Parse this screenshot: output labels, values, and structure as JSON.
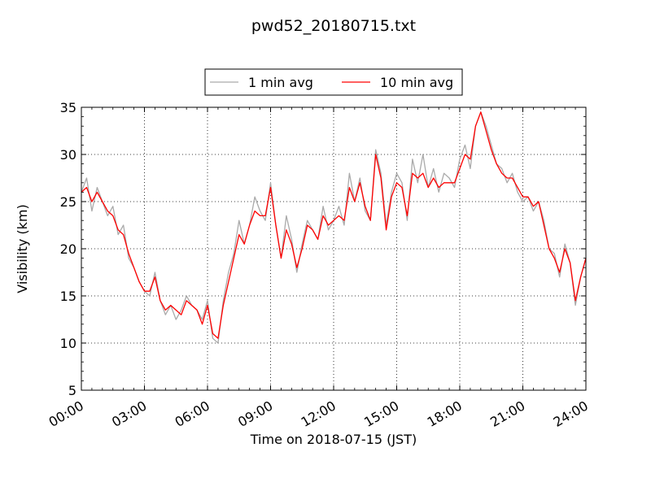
{
  "chart_data": {
    "type": "line",
    "title": "pwd52_20180715.txt",
    "xlabel": "Time on 2018-07-15 (JST)",
    "ylabel": "Visibility (km)",
    "xlim": [
      0,
      24
    ],
    "ylim": [
      5,
      35
    ],
    "x_ticks": [
      0,
      3,
      6,
      9,
      12,
      15,
      18,
      21,
      24
    ],
    "x_tick_labels": [
      "00:00",
      "03:00",
      "06:00",
      "09:00",
      "12:00",
      "15:00",
      "18:00",
      "21:00",
      "24:00"
    ],
    "y_ticks": [
      5,
      10,
      15,
      20,
      25,
      30,
      35
    ],
    "y_tick_labels": [
      "5",
      "10",
      "15",
      "20",
      "25",
      "30",
      "35"
    ],
    "grid": true,
    "legend_position": "top-center",
    "series": [
      {
        "name": "1 min avg",
        "color": "#aaaaaa",
        "x": [
          0.0,
          0.25,
          0.5,
          0.75,
          1.0,
          1.25,
          1.5,
          1.75,
          2.0,
          2.25,
          2.5,
          2.75,
          3.0,
          3.25,
          3.5,
          3.75,
          4.0,
          4.25,
          4.5,
          4.75,
          5.0,
          5.25,
          5.5,
          5.75,
          6.0,
          6.25,
          6.5,
          6.75,
          7.0,
          7.25,
          7.5,
          7.75,
          8.0,
          8.25,
          8.5,
          8.75,
          9.0,
          9.25,
          9.5,
          9.75,
          10.0,
          10.25,
          10.5,
          10.75,
          11.0,
          11.25,
          11.5,
          11.75,
          12.0,
          12.25,
          12.5,
          12.75,
          13.0,
          13.25,
          13.5,
          13.75,
          14.0,
          14.25,
          14.5,
          14.75,
          15.0,
          15.25,
          15.5,
          15.75,
          16.0,
          16.25,
          16.5,
          16.75,
          17.0,
          17.25,
          17.5,
          17.75,
          18.0,
          18.25,
          18.5,
          18.75,
          19.0,
          19.25,
          19.5,
          19.75,
          20.0,
          20.25,
          20.5,
          20.75,
          21.0,
          21.25,
          21.5,
          21.75,
          22.0,
          22.25,
          22.5,
          22.75,
          23.0,
          23.25,
          23.5,
          23.75,
          24.0
        ],
        "y": [
          26.0,
          27.5,
          24.0,
          26.5,
          25.0,
          23.5,
          24.5,
          21.5,
          22.5,
          19.0,
          18.0,
          16.5,
          15.5,
          15.0,
          17.5,
          14.5,
          13.0,
          14.0,
          12.5,
          13.5,
          15.0,
          14.0,
          13.5,
          12.5,
          14.5,
          10.5,
          10.0,
          14.5,
          17.5,
          19.5,
          23.0,
          20.5,
          22.5,
          25.5,
          24.0,
          23.0,
          27.0,
          22.5,
          19.0,
          23.5,
          21.0,
          17.5,
          20.5,
          23.0,
          22.0,
          21.0,
          24.5,
          22.0,
          23.0,
          24.5,
          22.5,
          28.0,
          25.0,
          27.5,
          24.0,
          23.0,
          30.5,
          28.0,
          22.5,
          26.0,
          28.0,
          27.0,
          23.0,
          29.5,
          27.0,
          30.0,
          26.5,
          28.5,
          26.0,
          28.0,
          27.5,
          26.5,
          29.5,
          31.0,
          28.5,
          33.0,
          34.5,
          33.0,
          31.0,
          29.0,
          28.5,
          27.0,
          28.0,
          26.0,
          25.0,
          25.5,
          24.0,
          25.0,
          23.0,
          20.0,
          19.5,
          17.0,
          20.5,
          18.5,
          14.0,
          17.0,
          19.0
        ]
      },
      {
        "name": "10 min avg",
        "color": "#ff0000",
        "x": [
          0.0,
          0.25,
          0.5,
          0.75,
          1.0,
          1.25,
          1.5,
          1.75,
          2.0,
          2.25,
          2.5,
          2.75,
          3.0,
          3.25,
          3.5,
          3.75,
          4.0,
          4.25,
          4.5,
          4.75,
          5.0,
          5.25,
          5.5,
          5.75,
          6.0,
          6.25,
          6.5,
          6.75,
          7.0,
          7.25,
          7.5,
          7.75,
          8.0,
          8.25,
          8.5,
          8.75,
          9.0,
          9.25,
          9.5,
          9.75,
          10.0,
          10.25,
          10.5,
          10.75,
          11.0,
          11.25,
          11.5,
          11.75,
          12.0,
          12.25,
          12.5,
          12.75,
          13.0,
          13.25,
          13.5,
          13.75,
          14.0,
          14.25,
          14.5,
          14.75,
          15.0,
          15.25,
          15.5,
          15.75,
          16.0,
          16.25,
          16.5,
          16.75,
          17.0,
          17.25,
          17.5,
          17.75,
          18.0,
          18.25,
          18.5,
          18.75,
          19.0,
          19.25,
          19.5,
          19.75,
          20.0,
          20.25,
          20.5,
          20.75,
          21.0,
          21.25,
          21.5,
          21.75,
          22.0,
          22.25,
          22.5,
          22.75,
          23.0,
          23.25,
          23.5,
          23.75,
          24.0
        ],
        "y": [
          26.0,
          26.5,
          25.0,
          26.0,
          25.0,
          24.0,
          23.5,
          22.0,
          21.5,
          19.5,
          18.0,
          16.5,
          15.5,
          15.5,
          17.0,
          14.5,
          13.5,
          14.0,
          13.5,
          13.0,
          14.5,
          14.0,
          13.5,
          12.0,
          14.0,
          11.0,
          10.5,
          14.0,
          16.5,
          19.0,
          21.5,
          20.5,
          22.5,
          24.0,
          23.5,
          23.5,
          26.5,
          22.5,
          19.0,
          22.0,
          20.5,
          18.0,
          20.0,
          22.5,
          22.0,
          21.0,
          23.5,
          22.5,
          23.0,
          23.5,
          23.0,
          26.5,
          25.0,
          27.0,
          24.5,
          23.0,
          30.0,
          27.5,
          22.0,
          25.5,
          27.0,
          26.5,
          23.5,
          28.0,
          27.5,
          28.0,
          26.5,
          27.5,
          26.5,
          27.0,
          27.0,
          27.0,
          28.5,
          30.0,
          29.5,
          33.0,
          34.5,
          32.5,
          30.5,
          29.0,
          28.0,
          27.5,
          27.5,
          26.5,
          25.5,
          25.5,
          24.5,
          25.0,
          22.5,
          20.0,
          19.0,
          17.5,
          20.0,
          18.5,
          14.5,
          17.0,
          19.0
        ]
      }
    ]
  }
}
